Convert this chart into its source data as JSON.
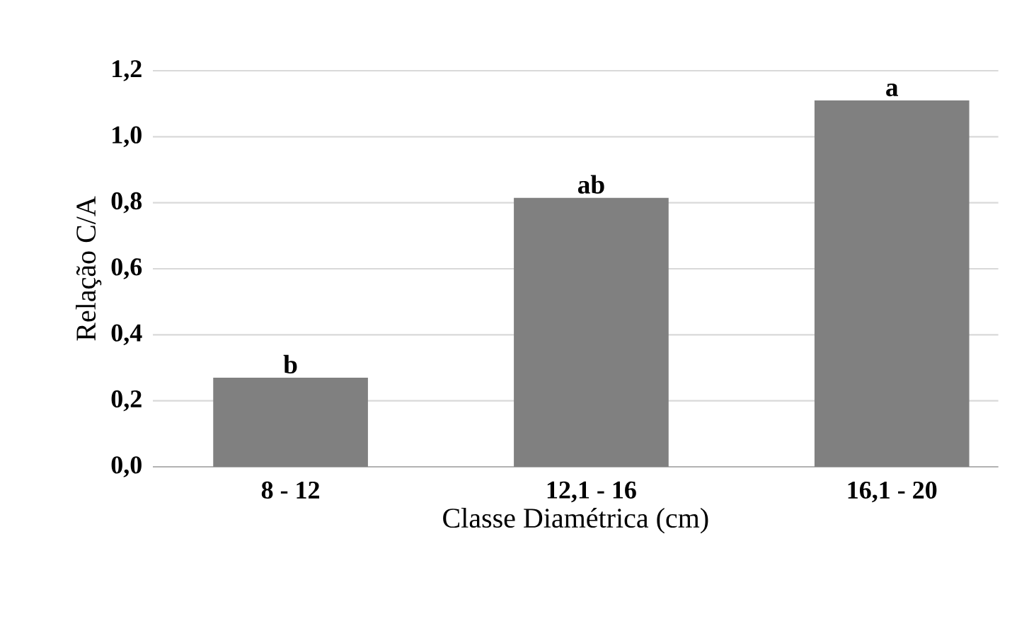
{
  "chart_data": {
    "type": "bar",
    "xlabel": "Classe Diamétrica (cm)",
    "ylabel": "Relação C/A",
    "categories": [
      "8 - 12",
      "12,1 - 16",
      "16,1 - 20"
    ],
    "values": [
      0.27,
      0.815,
      1.11
    ],
    "color": "#808080",
    "ylim": [
      0,
      1.2
    ],
    "yticks": [
      {
        "value": 0,
        "label": "0,0"
      },
      {
        "value": 0.2,
        "label": "0,2"
      },
      {
        "value": 0.4,
        "label": "0,4"
      },
      {
        "value": 0.6,
        "label": "0,6"
      },
      {
        "value": 0.8,
        "label": "0,8"
      },
      {
        "value": 1.0,
        "label": "1,0"
      },
      {
        "value": 1.2,
        "label": "1,2"
      }
    ],
    "grid": "y",
    "annotations": [
      {
        "text": "b",
        "x": "8 - 12",
        "y": 0.27
      },
      {
        "text": "ab",
        "x": "12,1 - 16",
        "y": 0.815
      },
      {
        "text": "a",
        "x": "16,1 - 20",
        "y": 1.11
      }
    ]
  }
}
